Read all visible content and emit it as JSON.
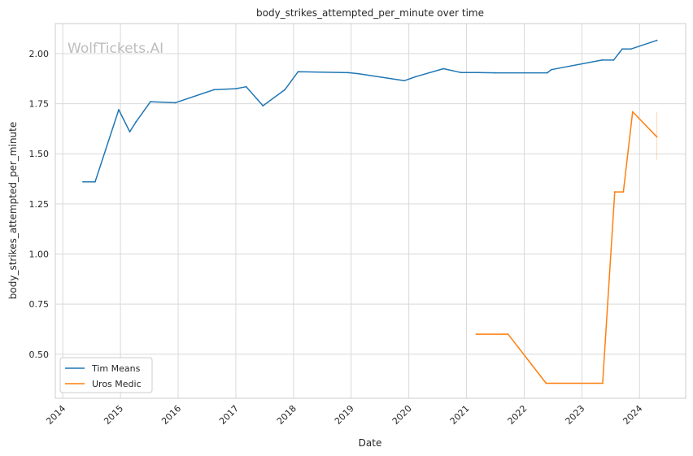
{
  "chart_data": {
    "type": "line",
    "title": "body_strikes_attempted_per_minute over time",
    "xlabel": "Date",
    "ylabel": "body_strikes_attempted_per_minute",
    "watermark": "WolfTickets.AI",
    "xlim": [
      2013.87,
      2024.8
    ],
    "ylim": [
      0.28,
      2.15
    ],
    "x_ticks": [
      2014,
      2015,
      2016,
      2017,
      2018,
      2019,
      2020,
      2021,
      2022,
      2023,
      2024
    ],
    "x_tick_labels": [
      "2014",
      "2015",
      "2016",
      "2017",
      "2018",
      "2019",
      "2020",
      "2021",
      "2022",
      "2023",
      "2024"
    ],
    "y_ticks": [
      0.5,
      0.75,
      1.0,
      1.25,
      1.5,
      1.75,
      2.0
    ],
    "y_tick_labels": [
      "0.50",
      "0.75",
      "1.00",
      "1.25",
      "1.50",
      "1.75",
      "2.00"
    ],
    "grid": true,
    "legend_position": "lower-left",
    "series": [
      {
        "name": "Tim Means",
        "color": "#1f77b4",
        "points": [
          [
            2014.35,
            1.36
          ],
          [
            2014.56,
            1.36
          ],
          [
            2014.97,
            1.72
          ],
          [
            2015.16,
            1.61
          ],
          [
            2015.27,
            1.66
          ],
          [
            2015.52,
            1.76
          ],
          [
            2015.95,
            1.755
          ],
          [
            2016.62,
            1.82
          ],
          [
            2017.0,
            1.825
          ],
          [
            2017.18,
            1.835
          ],
          [
            2017.47,
            1.74
          ],
          [
            2017.85,
            1.82
          ],
          [
            2018.08,
            1.91
          ],
          [
            2018.95,
            1.905
          ],
          [
            2019.12,
            1.9
          ],
          [
            2019.92,
            1.865
          ],
          [
            2020.12,
            1.885
          ],
          [
            2020.6,
            1.925
          ],
          [
            2020.9,
            1.906
          ],
          [
            2021.2,
            1.906
          ],
          [
            2021.5,
            1.904
          ],
          [
            2022.4,
            1.904
          ],
          [
            2022.47,
            1.92
          ],
          [
            2023.35,
            1.968
          ],
          [
            2023.55,
            1.968
          ],
          [
            2023.7,
            2.023
          ],
          [
            2023.85,
            2.023
          ],
          [
            2024.3,
            2.066
          ]
        ]
      },
      {
        "name": "Uros Medic",
        "color": "#ff7f0e",
        "points": [
          [
            2021.17,
            0.6
          ],
          [
            2021.72,
            0.6
          ],
          [
            2022.38,
            0.355
          ],
          [
            2023.36,
            0.355
          ],
          [
            2023.57,
            1.31
          ],
          [
            2023.72,
            1.31
          ],
          [
            2023.88,
            1.71
          ],
          [
            2024.3,
            1.585
          ]
        ],
        "error_band": {
          "x": 2024.3,
          "low": 1.47,
          "high": 1.71
        }
      }
    ]
  }
}
